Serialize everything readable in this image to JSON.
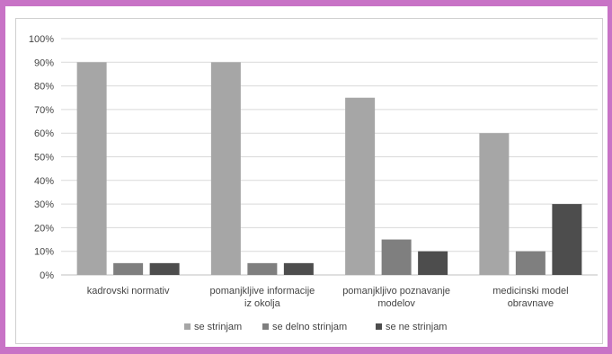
{
  "colors": {
    "frame": "#c873c6",
    "grid": "#d9d9d9",
    "series": [
      "#a6a6a6",
      "#7f7f7f",
      "#4d4d4d"
    ]
  },
  "chart_data": {
    "type": "bar",
    "title": "",
    "xlabel": "",
    "ylabel": "",
    "ylim": [
      0,
      100
    ],
    "y_ticks": [
      "0%",
      "10%",
      "20%",
      "30%",
      "40%",
      "50%",
      "60%",
      "70%",
      "80%",
      "90%",
      "100%"
    ],
    "grid": true,
    "legend_position": "bottom",
    "categories": [
      [
        "kadrovski normativ"
      ],
      [
        "pomanjkljive informacije",
        "iz okolja"
      ],
      [
        "pomanjkljivo poznavanje",
        "modelov"
      ],
      [
        "medicinski model",
        "obravnave"
      ]
    ],
    "series": [
      {
        "name": "se strinjam",
        "values": [
          90,
          90,
          75,
          60
        ]
      },
      {
        "name": "se delno strinjam",
        "values": [
          5,
          5,
          15,
          10
        ]
      },
      {
        "name": "se ne strinjam",
        "values": [
          5,
          5,
          10,
          30
        ]
      }
    ]
  }
}
